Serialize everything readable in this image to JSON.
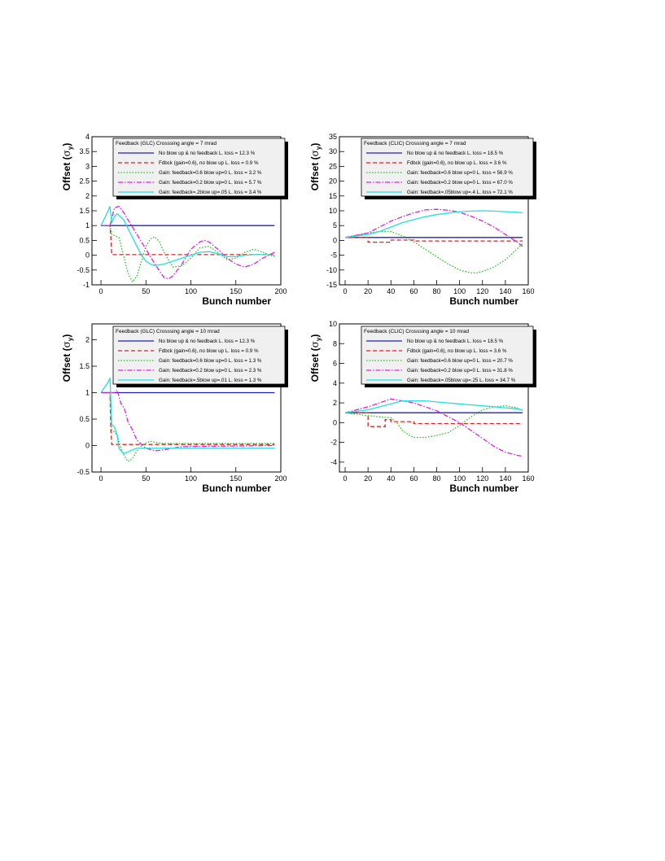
{
  "chart_data": [
    {
      "type": "line",
      "legend_title": "Feedback  (GLC) Crosssing angle =  7 mrad",
      "xlabel": "Bunch number",
      "ylabel_main": "Offset (",
      "ylabel_sigma": "σ",
      "ylabel_sub": "y",
      "ylabel_close": ")",
      "xlim": [
        -10,
        200
      ],
      "ylim": [
        -1,
        4
      ],
      "xticks": [
        "0",
        "50",
        "100",
        "150",
        "200"
      ],
      "yticks": [
        "-1",
        "-0.5",
        "0",
        "0.5",
        "1",
        "1.5",
        "2",
        "2.5",
        "3",
        "3.5",
        "4"
      ],
      "legend_position": "top-right",
      "series": [
        {
          "name": "No blow up & no feedback   L. loss = 12.3 %",
          "color": "#2020c0",
          "dash": "solid",
          "x": [
            0,
            193
          ],
          "y": [
            1,
            1
          ]
        },
        {
          "name": "Fdbck (gain=0.6), no blow up    L. loss = 0.9 %",
          "color": "#e02020",
          "dash": "dashed",
          "x": [
            0,
            10,
            11,
            12,
            193
          ],
          "y": [
            1,
            1,
            0.6,
            0.02,
            0.02
          ]
        },
        {
          "name": "Gain: feedback=0.6 blow up=0    L. loss = 3.2 %",
          "color": "#20c020",
          "dash": "dotted",
          "x": [
            0,
            10,
            12,
            20,
            25,
            30,
            35,
            40,
            45,
            50,
            55,
            60,
            65,
            70,
            80,
            90,
            100,
            110,
            120,
            130,
            140,
            150,
            160,
            170,
            180,
            193
          ],
          "y": [
            1,
            1,
            0.7,
            0.6,
            0,
            -0.6,
            -0.9,
            -0.7,
            -0.2,
            0.3,
            0.55,
            0.62,
            0.45,
            0.1,
            -0.4,
            -0.35,
            -0.1,
            0.25,
            0.3,
            0.1,
            -0.15,
            -0.1,
            0.1,
            0.2,
            0.1,
            -0.05
          ]
        },
        {
          "name": "Gain: feedback=0.2 blow up=0    L. loss = 5.7 %",
          "color": "#e020e0",
          "dash": "dashdot",
          "x": [
            0,
            10,
            15,
            20,
            25,
            30,
            40,
            50,
            60,
            70,
            75,
            80,
            90,
            100,
            110,
            115,
            120,
            130,
            140,
            150,
            160,
            170,
            180,
            193
          ],
          "y": [
            1,
            1,
            1.6,
            1.65,
            1.45,
            1.2,
            0.7,
            0.2,
            -0.3,
            -0.75,
            -0.8,
            -0.7,
            -0.3,
            0.2,
            0.45,
            0.5,
            0.45,
            0.2,
            -0.1,
            -0.3,
            -0.4,
            -0.3,
            -0.1,
            0.1
          ]
        },
        {
          "name": "Gain: feedback=.2blow up=.05    L. loss = 3.4 %",
          "color": "#20e0e0",
          "dash": "solid",
          "x": [
            0,
            8,
            10,
            12,
            15,
            18,
            20,
            25,
            30,
            35,
            40,
            45,
            50,
            55,
            60,
            70,
            80,
            90,
            100,
            110,
            120,
            130,
            140,
            150,
            160,
            170,
            180,
            193
          ],
          "y": [
            1,
            1.5,
            1.65,
            1.1,
            1.3,
            1.4,
            1.35,
            1.2,
            0.9,
            0.6,
            0.3,
            0,
            -0.2,
            -0.3,
            -0.35,
            -0.3,
            -0.2,
            -0.1,
            0,
            0.1,
            0.12,
            0.05,
            -0.05,
            -0.05,
            0,
            0.02,
            0.02,
            0
          ]
        }
      ]
    },
    {
      "type": "line",
      "legend_title": "Feedback  (CLIC) Crosssing angle =  7 mrad",
      "xlabel": "Bunch number",
      "ylabel_main": "Offset (",
      "ylabel_sigma": "σ",
      "ylabel_sub": "y",
      "ylabel_close": ")",
      "xlim": [
        -5,
        160
      ],
      "ylim": [
        -15,
        35
      ],
      "xticks": [
        "0",
        "20",
        "40",
        "60",
        "80",
        "100",
        "120",
        "140",
        "160"
      ],
      "yticks": [
        "-15",
        "-10",
        "-5",
        "0",
        "5",
        "10",
        "15",
        "20",
        "25",
        "30",
        "35"
      ],
      "legend_position": "top-right",
      "series": [
        {
          "name": "No blow up & no feedback   L. loss = 18.5 %",
          "color": "#2020c0",
          "dash": "solid",
          "x": [
            0,
            155
          ],
          "y": [
            1,
            1
          ]
        },
        {
          "name": "Fdbck (gain=0.6), no blow up    L. loss = 3.6 %",
          "color": "#e02020",
          "dash": "dashed",
          "x": [
            0,
            20,
            20,
            40,
            40,
            60,
            60,
            155
          ],
          "y": [
            1,
            1,
            -0.6,
            -0.6,
            0.1,
            0.1,
            -0.2,
            -0.2
          ]
        },
        {
          "name": "Gain: feedback=0.6 blow up=0    L. loss = 56.9 %",
          "color": "#20c020",
          "dash": "dotted",
          "x": [
            0,
            20,
            30,
            40,
            50,
            60,
            70,
            80,
            90,
            100,
            110,
            115,
            120,
            130,
            140,
            150,
            155
          ],
          "y": [
            1,
            2.5,
            3,
            3,
            1.5,
            -0.5,
            -3,
            -5.5,
            -8,
            -10,
            -11,
            -11,
            -10.5,
            -9,
            -6.5,
            -3,
            -1
          ]
        },
        {
          "name": "Gain: feedback=0.2 blow up=0    L. loss = 67.0 %",
          "color": "#e020e0",
          "dash": "dashdot",
          "x": [
            0,
            20,
            30,
            40,
            50,
            60,
            70,
            80,
            90,
            100,
            110,
            120,
            130,
            140,
            150,
            155
          ],
          "y": [
            1,
            2.5,
            4.5,
            6.5,
            8,
            9.3,
            10.3,
            10.5,
            10.2,
            9.5,
            8.2,
            6.5,
            4.5,
            2,
            -0.5,
            -2
          ]
        },
        {
          "name": "Gain: feedback=.05blow up=.4    L. loss = 72.1 %",
          "color": "#20e0e0",
          "dash": "solid",
          "x": [
            0,
            20,
            30,
            40,
            50,
            60,
            70,
            80,
            90,
            100,
            110,
            120,
            130,
            140,
            150,
            155
          ],
          "y": [
            1,
            2,
            3,
            4.5,
            6,
            7,
            8,
            8.7,
            9.2,
            9.7,
            9.9,
            10,
            9.9,
            9.7,
            9.5,
            9.3
          ]
        }
      ]
    },
    {
      "type": "line",
      "legend_title": "Feedback  (GLC) Crosssing angle =  10 mrad",
      "xlabel": "Bunch number",
      "ylabel_main": "Offset (",
      "ylabel_sigma": "σ",
      "ylabel_sub": "y",
      "ylabel_close": ")",
      "xlim": [
        -10,
        200
      ],
      "ylim": [
        -0.5,
        2.3
      ],
      "xticks": [
        "0",
        "50",
        "100",
        "150",
        "200"
      ],
      "yticks": [
        "-0.5",
        "0",
        "0.5",
        "1",
        "1.5",
        "2"
      ],
      "legend_position": "top-right",
      "series": [
        {
          "name": "No blow up & no feedback   L. loss = 12.3 %",
          "color": "#2020c0",
          "dash": "solid",
          "x": [
            0,
            193
          ],
          "y": [
            1,
            1
          ]
        },
        {
          "name": "Fdbck (gain=0.6), no blow up    L. loss = 0.9 %",
          "color": "#e02020",
          "dash": "dashed",
          "x": [
            0,
            10,
            11,
            12,
            193
          ],
          "y": [
            1,
            1,
            0.3,
            0.02,
            0.02
          ]
        },
        {
          "name": "Gain: feedback=0.6 blow up=0    L. loss = 1.3 %",
          "color": "#20c020",
          "dash": "dotted",
          "x": [
            0,
            10,
            12,
            18,
            22,
            26,
            30,
            35,
            40,
            45,
            50,
            55,
            60,
            65,
            70,
            80,
            90,
            100,
            193
          ],
          "y": [
            1,
            1,
            0.3,
            0.2,
            -0.05,
            -0.2,
            -0.3,
            -0.25,
            -0.1,
            0,
            0.05,
            0.08,
            0.06,
            0.05,
            0.04,
            0.04,
            0.04,
            0.04,
            0.04
          ]
        },
        {
          "name": "Gain: feedback=0.2 blow up=0    L. loss = 2.3 %",
          "color": "#e020e0",
          "dash": "dashdot",
          "x": [
            0,
            10,
            15,
            18,
            22,
            26,
            30,
            35,
            40,
            50,
            60,
            70,
            80,
            90,
            193
          ],
          "y": [
            1,
            1,
            1.0,
            1.05,
            0.8,
            0.7,
            0.45,
            0.3,
            0.1,
            -0.05,
            -0.1,
            -0.08,
            -0.05,
            -0.02,
            0
          ]
        },
        {
          "name": "Gain: feedback=.5blow up=.01    L. loss = 1.3 %",
          "color": "#20e0e0",
          "dash": "solid",
          "x": [
            0,
            8,
            10,
            12,
            15,
            18,
            20,
            25,
            30,
            35,
            40,
            50,
            60,
            70,
            80,
            100,
            193
          ],
          "y": [
            1,
            1.2,
            1.28,
            0.4,
            0.35,
            0.2,
            -0.05,
            -0.15,
            -0.12,
            -0.08,
            -0.05,
            -0.05,
            -0.05,
            -0.05,
            -0.05,
            -0.05,
            -0.05
          ]
        }
      ]
    },
    {
      "type": "line",
      "legend_title": "Feedback  (CLIC) Crosssing angle =  10 mrad",
      "xlabel": "Bunch number",
      "ylabel_main": "Offset (",
      "ylabel_sigma": "σ",
      "ylabel_sub": "y",
      "ylabel_close": ")",
      "xlim": [
        -5,
        160
      ],
      "ylim": [
        -5,
        10
      ],
      "xticks": [
        "0",
        "20",
        "40",
        "60",
        "80",
        "100",
        "120",
        "140",
        "160"
      ],
      "yticks": [
        "-4",
        "-2",
        "0",
        "2",
        "4",
        "6",
        "8",
        "10"
      ],
      "legend_position": "top-right",
      "series": [
        {
          "name": "No blow up & no feedback   L. loss = 18.5 %",
          "color": "#2020c0",
          "dash": "solid",
          "x": [
            0,
            155
          ],
          "y": [
            1,
            1
          ]
        },
        {
          "name": "Fdbck (gain=0.6), no blow up    L. loss = 3.6 %",
          "color": "#e02020",
          "dash": "dashed",
          "x": [
            0,
            20,
            20,
            35,
            35,
            40,
            40,
            60,
            60,
            155
          ],
          "y": [
            1,
            1,
            -0.4,
            -0.4,
            0.3,
            0.3,
            0.1,
            0.1,
            -0.1,
            -0.1
          ]
        },
        {
          "name": "Gain: feedback=0.6 blow up=0    L. loss = 20.7 %",
          "color": "#20c020",
          "dash": "dotted",
          "x": [
            0,
            20,
            30,
            40,
            45,
            50,
            55,
            60,
            70,
            80,
            90,
            100,
            110,
            120,
            130,
            140,
            150,
            155
          ],
          "y": [
            1,
            0.7,
            0.6,
            0.5,
            0,
            -0.8,
            -1.2,
            -1.5,
            -1.5,
            -1.3,
            -1,
            -0.3,
            0.6,
            1.3,
            1.6,
            1.7,
            1.5,
            1.2
          ]
        },
        {
          "name": "Gain: feedback=0.2 blow up=0    L. loss = 31.8 %",
          "color": "#e020e0",
          "dash": "dashdot",
          "x": [
            0,
            20,
            30,
            40,
            50,
            60,
            70,
            80,
            90,
            100,
            110,
            120,
            130,
            140,
            150,
            155
          ],
          "y": [
            1,
            1.6,
            2,
            2.4,
            2.2,
            2,
            1.6,
            1.2,
            0.6,
            0,
            -0.8,
            -1.6,
            -2.4,
            -3,
            -3.3,
            -3.4
          ]
        },
        {
          "name": "Gain: feedback=.05blow up=.25    L. loss = 34.7 %",
          "color": "#20e0e0",
          "dash": "solid",
          "x": [
            0,
            20,
            30,
            40,
            50,
            60,
            70,
            80,
            90,
            100,
            110,
            120,
            130,
            140,
            150,
            155
          ],
          "y": [
            1,
            1.3,
            1.6,
            1.9,
            2.2,
            2.2,
            2.2,
            2.1,
            2,
            1.9,
            1.8,
            1.7,
            1.6,
            1.5,
            1.4,
            1.3
          ]
        }
      ]
    }
  ]
}
